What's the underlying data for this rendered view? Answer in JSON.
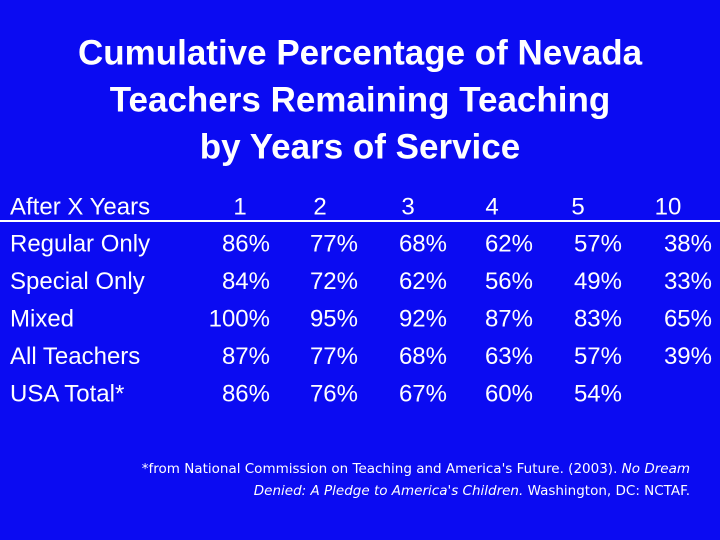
{
  "title": {
    "lines": [
      "Cumulative Percentage of Nevada",
      "Teachers Remaining Teaching",
      "by Years of Service"
    ]
  },
  "table": {
    "header": [
      "After X Years",
      "1",
      "2",
      "3",
      "4",
      "5",
      "10"
    ],
    "rows": [
      [
        "Regular Only",
        "86%",
        "77%",
        "68%",
        "62%",
        "57%",
        "38%"
      ],
      [
        "Special Only",
        "84%",
        "72%",
        "62%",
        "56%",
        "49%",
        "33%"
      ],
      [
        "Mixed",
        "100%",
        "95%",
        "92%",
        "87%",
        "83%",
        "65%"
      ],
      [
        "All Teachers",
        "87%",
        "77%",
        "68%",
        "63%",
        "57%",
        "39%"
      ],
      [
        "USA Total*",
        "86%",
        "76%",
        "67%",
        "60%",
        "54%"
      ]
    ]
  },
  "footnote": {
    "source": "*from National Commission on Teaching and America's Future. (2003).",
    "book": "No Dream Denied: A Pledge to America's Children.",
    "publisher": "Washington, DC: NCTAF."
  }
}
